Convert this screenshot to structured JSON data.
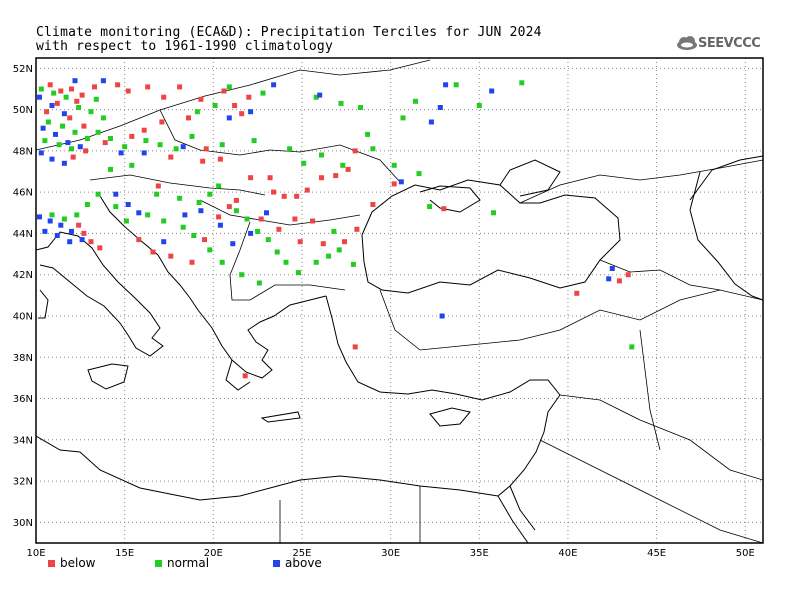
{
  "title_line1": "Climate monitoring (ECA&D): Precipitation Terciles for JUN 2024",
  "title_line2": "with respect to 1961-1990 climatology",
  "logo_text": "SEEVCCC",
  "legend": [
    {
      "label": "below",
      "color": "#ee4444"
    },
    {
      "label": "normal",
      "color": "#22cc22"
    },
    {
      "label": "above",
      "color": "#2244ee"
    }
  ],
  "map": {
    "lon_range": [
      10,
      51
    ],
    "lat_range": [
      29,
      52.5
    ],
    "lon_ticks": [
      "10E",
      "15E",
      "20E",
      "25E",
      "30E",
      "35E",
      "40E",
      "45E",
      "50E"
    ],
    "lat_ticks": [
      "30N",
      "32N",
      "34N",
      "36N",
      "38N",
      "40N",
      "42N",
      "44N",
      "46N",
      "48N",
      "50N",
      "52N"
    ],
    "grid": "dotted"
  },
  "stations": {
    "below": [
      [
        10.8,
        51.2
      ],
      [
        11.4,
        50.9
      ],
      [
        12.0,
        51.0
      ],
      [
        12.6,
        50.7
      ],
      [
        13.3,
        51.1
      ],
      [
        11.2,
        50.3
      ],
      [
        12.3,
        50.4
      ],
      [
        10.6,
        49.9
      ],
      [
        11.9,
        49.6
      ],
      [
        12.7,
        49.2
      ],
      [
        14.6,
        51.2
      ],
      [
        15.2,
        50.9
      ],
      [
        16.3,
        51.1
      ],
      [
        17.2,
        50.6
      ],
      [
        18.1,
        51.1
      ],
      [
        19.3,
        50.5
      ],
      [
        20.6,
        50.9
      ],
      [
        21.2,
        50.2
      ],
      [
        22.0,
        50.6
      ],
      [
        21.6,
        49.8
      ],
      [
        18.6,
        49.6
      ],
      [
        17.1,
        49.4
      ],
      [
        16.1,
        49.0
      ],
      [
        15.4,
        48.7
      ],
      [
        13.9,
        48.4
      ],
      [
        12.8,
        48.0
      ],
      [
        12.1,
        47.7
      ],
      [
        19.6,
        48.1
      ],
      [
        20.4,
        47.6
      ],
      [
        22.1,
        46.7
      ],
      [
        23.2,
        46.7
      ],
      [
        23.4,
        46.0
      ],
      [
        24.0,
        45.8
      ],
      [
        24.7,
        45.8
      ],
      [
        25.3,
        46.1
      ],
      [
        26.1,
        46.7
      ],
      [
        26.9,
        46.8
      ],
      [
        27.6,
        47.1
      ],
      [
        28.0,
        48.0
      ],
      [
        25.6,
        44.6
      ],
      [
        24.6,
        44.7
      ],
      [
        23.7,
        44.2
      ],
      [
        24.9,
        43.6
      ],
      [
        26.2,
        43.5
      ],
      [
        27.4,
        43.6
      ],
      [
        28.1,
        44.2
      ],
      [
        29.0,
        45.4
      ],
      [
        30.2,
        46.4
      ],
      [
        33.0,
        45.2
      ],
      [
        12.4,
        44.4
      ],
      [
        12.7,
        44.0
      ],
      [
        13.1,
        43.6
      ],
      [
        13.6,
        43.3
      ],
      [
        15.8,
        43.7
      ],
      [
        16.6,
        43.1
      ],
      [
        17.6,
        42.9
      ],
      [
        18.8,
        42.6
      ],
      [
        19.5,
        43.7
      ],
      [
        20.3,
        44.8
      ],
      [
        20.9,
        45.3
      ],
      [
        21.3,
        45.6
      ],
      [
        22.7,
        44.7
      ],
      [
        40.5,
        41.1
      ],
      [
        42.9,
        41.7
      ],
      [
        43.4,
        42.0
      ],
      [
        28.0,
        38.5
      ],
      [
        21.8,
        37.1
      ],
      [
        16.9,
        46.3
      ],
      [
        17.6,
        47.7
      ],
      [
        19.4,
        47.5
      ]
    ],
    "normal": [
      [
        10.3,
        51.0
      ],
      [
        11.0,
        50.8
      ],
      [
        11.7,
        50.6
      ],
      [
        12.4,
        50.1
      ],
      [
        13.1,
        49.9
      ],
      [
        10.7,
        49.4
      ],
      [
        11.5,
        49.2
      ],
      [
        12.2,
        48.9
      ],
      [
        12.9,
        48.6
      ],
      [
        13.5,
        48.9
      ],
      [
        10.5,
        48.5
      ],
      [
        11.3,
        48.3
      ],
      [
        12.0,
        48.1
      ],
      [
        13.4,
        50.5
      ],
      [
        13.8,
        49.6
      ],
      [
        14.2,
        48.6
      ],
      [
        15.0,
        48.2
      ],
      [
        16.2,
        48.5
      ],
      [
        17.0,
        48.3
      ],
      [
        17.9,
        48.1
      ],
      [
        18.8,
        48.7
      ],
      [
        20.5,
        48.3
      ],
      [
        22.3,
        48.5
      ],
      [
        24.3,
        48.1
      ],
      [
        26.1,
        47.8
      ],
      [
        27.3,
        47.3
      ],
      [
        29.0,
        48.1
      ],
      [
        30.2,
        47.3
      ],
      [
        31.6,
        46.9
      ],
      [
        32.2,
        45.3
      ],
      [
        19.1,
        49.9
      ],
      [
        20.1,
        50.2
      ],
      [
        20.9,
        51.1
      ],
      [
        22.8,
        50.8
      ],
      [
        25.8,
        50.6
      ],
      [
        27.2,
        50.3
      ],
      [
        28.3,
        50.1
      ],
      [
        30.7,
        49.6
      ],
      [
        31.4,
        50.4
      ],
      [
        33.7,
        51.2
      ],
      [
        35.0,
        50.2
      ],
      [
        37.4,
        51.3
      ],
      [
        14.2,
        47.1
      ],
      [
        15.4,
        47.3
      ],
      [
        16.8,
        45.9
      ],
      [
        18.1,
        45.7
      ],
      [
        19.2,
        45.5
      ],
      [
        19.8,
        45.9
      ],
      [
        20.3,
        46.3
      ],
      [
        21.3,
        45.1
      ],
      [
        21.9,
        44.7
      ],
      [
        22.5,
        44.1
      ],
      [
        23.1,
        43.7
      ],
      [
        23.6,
        43.1
      ],
      [
        24.1,
        42.6
      ],
      [
        24.8,
        42.1
      ],
      [
        25.8,
        42.6
      ],
      [
        26.5,
        42.9
      ],
      [
        27.1,
        43.2
      ],
      [
        27.9,
        42.5
      ],
      [
        18.3,
        44.3
      ],
      [
        18.9,
        43.9
      ],
      [
        19.8,
        43.2
      ],
      [
        20.5,
        42.6
      ],
      [
        21.6,
        42.0
      ],
      [
        22.6,
        41.6
      ],
      [
        16.3,
        44.9
      ],
      [
        17.2,
        44.6
      ],
      [
        14.5,
        45.3
      ],
      [
        15.1,
        44.6
      ],
      [
        10.9,
        44.9
      ],
      [
        11.6,
        44.7
      ],
      [
        12.3,
        44.9
      ],
      [
        12.9,
        45.4
      ],
      [
        13.5,
        45.9
      ],
      [
        43.6,
        38.5
      ],
      [
        26.8,
        44.1
      ],
      [
        35.8,
        45.0
      ],
      [
        28.7,
        48.8
      ],
      [
        25.1,
        47.4
      ]
    ],
    "above": [
      [
        10.2,
        50.6
      ],
      [
        10.9,
        50.2
      ],
      [
        11.6,
        49.8
      ],
      [
        10.4,
        49.1
      ],
      [
        11.1,
        48.8
      ],
      [
        11.8,
        48.4
      ],
      [
        12.5,
        48.2
      ],
      [
        10.3,
        47.9
      ],
      [
        10.9,
        47.6
      ],
      [
        11.6,
        47.4
      ],
      [
        13.8,
        51.4
      ],
      [
        12.2,
        51.4
      ],
      [
        14.8,
        47.9
      ],
      [
        16.1,
        47.9
      ],
      [
        18.3,
        48.2
      ],
      [
        20.9,
        49.6
      ],
      [
        22.1,
        49.9
      ],
      [
        23.4,
        51.2
      ],
      [
        26.0,
        50.7
      ],
      [
        32.8,
        50.1
      ],
      [
        33.1,
        51.2
      ],
      [
        35.7,
        50.9
      ],
      [
        32.3,
        49.4
      ],
      [
        30.6,
        46.5
      ],
      [
        14.5,
        45.9
      ],
      [
        15.2,
        45.4
      ],
      [
        15.8,
        45.0
      ],
      [
        10.2,
        44.8
      ],
      [
        10.8,
        44.6
      ],
      [
        11.4,
        44.4
      ],
      [
        12.0,
        44.1
      ],
      [
        10.5,
        44.1
      ],
      [
        11.2,
        43.9
      ],
      [
        11.9,
        43.6
      ],
      [
        12.6,
        43.7
      ],
      [
        20.4,
        44.4
      ],
      [
        21.1,
        43.5
      ],
      [
        22.1,
        44.0
      ],
      [
        42.5,
        42.3
      ],
      [
        42.3,
        41.8
      ],
      [
        32.9,
        40.0
      ],
      [
        18.4,
        44.9
      ],
      [
        19.3,
        45.1
      ],
      [
        23.0,
        45.0
      ],
      [
        17.2,
        43.6
      ]
    ]
  }
}
